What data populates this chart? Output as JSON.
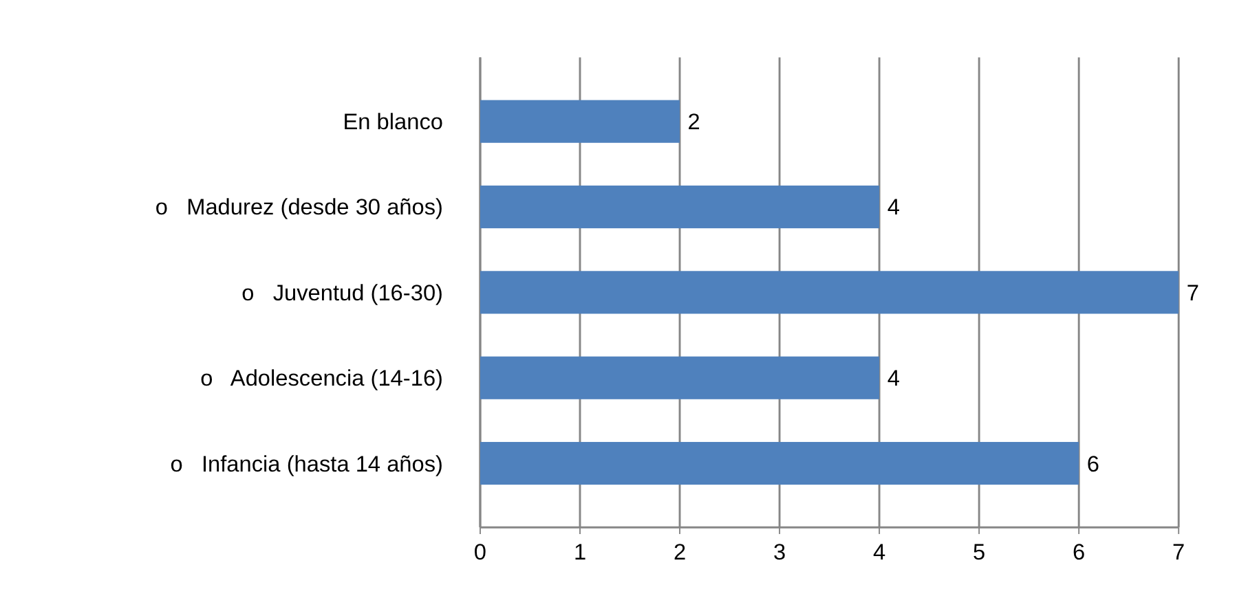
{
  "chart_data": {
    "type": "bar",
    "orientation": "horizontal",
    "categories": [
      "En blanco",
      "o   Madurez (desde 30 años)",
      "o   Juventud (16-30)",
      "o   Adolescencia (14-16)",
      "o   Infancia (hasta 14 años)"
    ],
    "values": [
      2,
      4,
      7,
      4,
      6
    ],
    "color": "#4f81bd",
    "xlim": [
      0,
      7
    ],
    "xticks": [
      0,
      1,
      2,
      3,
      4,
      5,
      6,
      7
    ],
    "grid": "x",
    "data_labels": true
  }
}
